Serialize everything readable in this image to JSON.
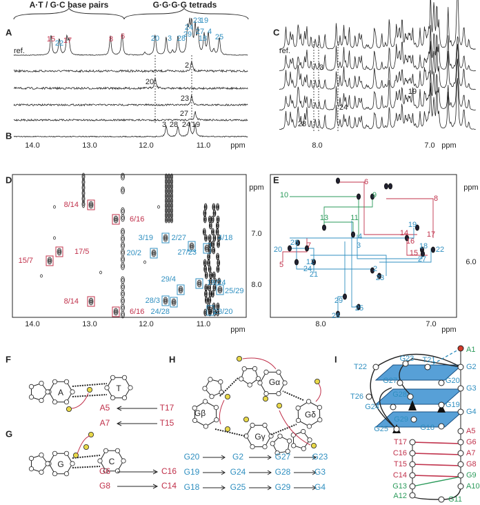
{
  "panel_labels": [
    "A",
    "B",
    "C",
    "D",
    "E",
    "F",
    "G",
    "H",
    "I"
  ],
  "header": {
    "base_pairs": "A·T / G·C  base pairs",
    "tetrads": "G·G·G·G  tetrads"
  },
  "panel_a": {
    "ref": "ref.",
    "peaks": [
      "15",
      "22",
      "17",
      "8",
      "6",
      "20",
      "3",
      "28",
      "24",
      "29",
      "23",
      "19",
      "27",
      "18",
      "4",
      "25"
    ],
    "traces": [
      "2",
      "20",
      "23",
      "27"
    ]
  },
  "panel_b": {
    "peaks": [
      "3",
      "28",
      "24",
      "19"
    ]
  },
  "axis_ab": {
    "ticks": [
      "14.0",
      "13.0",
      "12.0",
      "11.0"
    ],
    "unit": "ppm"
  },
  "panel_c": {
    "ref": "ref.",
    "traces": [
      "3",
      "19",
      "24",
      "28"
    ]
  },
  "axis_c": {
    "ticks": [
      "8.0",
      "7.0"
    ],
    "unit": "ppm"
  },
  "panel_d": {
    "red": [
      "8/14",
      "6/16",
      "17/5",
      "15/7",
      "8/14",
      "6/16"
    ],
    "blue": [
      "3/19",
      "20/2",
      "2/27",
      "4/18",
      "27/23",
      "29/4",
      "19/24",
      "28/3",
      "24/28",
      "23/20",
      "25/29"
    ],
    "x_ticks": [
      "14.0",
      "13.0",
      "12.0",
      "11.0"
    ],
    "x_unit": "ppm",
    "y_ticks": [
      "7.0",
      "8.0"
    ],
    "y_unit": "ppm"
  },
  "panel_e": {
    "green": [
      "10",
      "9",
      "13",
      "11"
    ],
    "red": [
      "6",
      "8",
      "17",
      "14",
      "16",
      "15",
      "7",
      "5"
    ],
    "blue": [
      "19",
      "18",
      "22",
      "27",
      "20",
      "28",
      "4",
      "3",
      "12",
      "24",
      "21",
      "2",
      "23",
      "29",
      "25",
      "26"
    ],
    "x_ticks": [
      "8.0",
      "7.0"
    ],
    "x_unit": "ppm",
    "y_ticks": [
      "6.0"
    ],
    "y_unit": "ppm"
  },
  "panel_f": {
    "bases": [
      "A",
      "T"
    ],
    "pairs": [
      [
        "A5",
        "T17"
      ],
      [
        "A7",
        "T15"
      ]
    ]
  },
  "panel_g": {
    "bases": [
      "G",
      "C"
    ],
    "pairs": [
      [
        "G6",
        "C16"
      ],
      [
        "G8",
        "C14"
      ]
    ]
  },
  "panel_h": {
    "bases": [
      "Gα",
      "Gβ",
      "Gγ",
      "Gδ"
    ],
    "rows": [
      [
        "G20",
        "G2",
        "G27",
        "G23"
      ],
      [
        "G19",
        "G24",
        "G28",
        "G3"
      ],
      [
        "G18",
        "G25",
        "G29",
        "G4"
      ]
    ]
  },
  "panel_i": {
    "labels": [
      "A1",
      "T22",
      "G23",
      "T21",
      "G2",
      "G27",
      "G20",
      "G3",
      "T26",
      "G28",
      "G19",
      "G24",
      "G29",
      "G4",
      "G25",
      "G18",
      "A5",
      "G6",
      "T17",
      "A7",
      "C16",
      "G8",
      "T15",
      "G9",
      "C14",
      "A10",
      "G13",
      "A12",
      "G11"
    ]
  }
}
